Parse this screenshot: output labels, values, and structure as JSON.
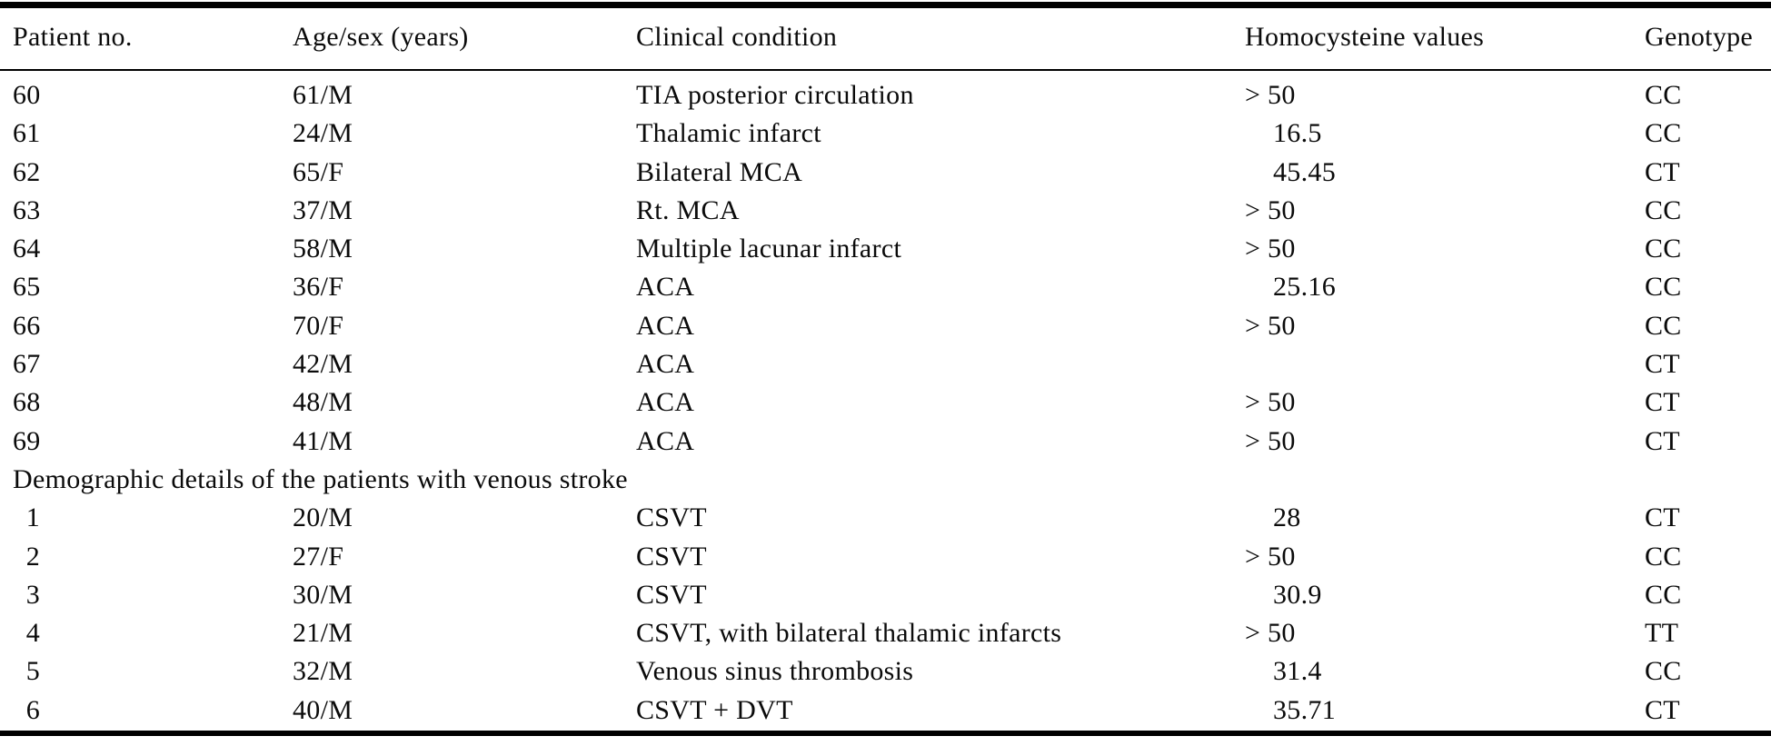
{
  "colors": {
    "background": "#ffffff",
    "text": "#0b0b0b",
    "rule": "#000000"
  },
  "table": {
    "columns": [
      "Patient no.",
      "Age/sex (years)",
      "Clinical condition",
      "Homocysteine values",
      "Genotype"
    ],
    "rows": [
      {
        "type": "data",
        "no": "60",
        "age_sex": "61/M",
        "condition": "TIA posterior circulation",
        "homocysteine": "> 50",
        "genotype": "CC"
      },
      {
        "type": "data",
        "no": "61",
        "age_sex": "24/M",
        "condition": "Thalamic infarct",
        "homocysteine": "16.5",
        "genotype": "CC"
      },
      {
        "type": "data",
        "no": "62",
        "age_sex": "65/F",
        "condition": "Bilateral MCA",
        "homocysteine": "45.45",
        "genotype": "CT"
      },
      {
        "type": "data",
        "no": "63",
        "age_sex": "37/M",
        "condition": "Rt. MCA",
        "homocysteine": "> 50",
        "genotype": "CC"
      },
      {
        "type": "data",
        "no": "64",
        "age_sex": "58/M",
        "condition": "Multiple lacunar infarct",
        "homocysteine": "> 50",
        "genotype": "CC"
      },
      {
        "type": "data",
        "no": "65",
        "age_sex": "36/F",
        "condition": "ACA",
        "homocysteine": "25.16",
        "genotype": "CC"
      },
      {
        "type": "data",
        "no": "66",
        "age_sex": "70/F",
        "condition": "ACA",
        "homocysteine": "> 50",
        "genotype": "CC"
      },
      {
        "type": "data",
        "no": "67",
        "age_sex": "42/M",
        "condition": "ACA",
        "homocysteine": "",
        "genotype": "CT"
      },
      {
        "type": "data",
        "no": "68",
        "age_sex": "48/M",
        "condition": "ACA",
        "homocysteine": "> 50",
        "genotype": "CT"
      },
      {
        "type": "data",
        "no": "69",
        "age_sex": "41/M",
        "condition": "ACA",
        "homocysteine": "> 50",
        "genotype": "CT"
      },
      {
        "type": "section",
        "label": "Demographic details of the patients with venous stroke"
      },
      {
        "type": "data",
        "no": "1",
        "age_sex": "20/M",
        "condition": "CSVT",
        "homocysteine": "28",
        "genotype": "CT"
      },
      {
        "type": "data",
        "no": "2",
        "age_sex": "27/F",
        "condition": "CSVT",
        "homocysteine": "> 50",
        "genotype": "CC"
      },
      {
        "type": "data",
        "no": "3",
        "age_sex": "30/M",
        "condition": "CSVT",
        "homocysteine": "30.9",
        "genotype": "CC"
      },
      {
        "type": "data",
        "no": "4",
        "age_sex": "21/M",
        "condition": "CSVT, with bilateral thalamic infarcts",
        "homocysteine": "> 50",
        "genotype": "TT"
      },
      {
        "type": "data",
        "no": "5",
        "age_sex": "32/M",
        "condition": "Venous sinus thrombosis",
        "homocysteine": "31.4",
        "genotype": "CC"
      },
      {
        "type": "data",
        "no": "6",
        "age_sex": "40/M",
        "condition": "CSVT + DVT",
        "homocysteine": "35.71",
        "genotype": "CT"
      }
    ]
  }
}
